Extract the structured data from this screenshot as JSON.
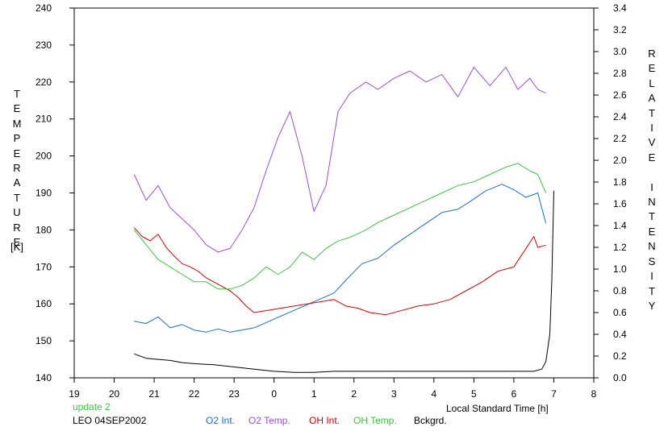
{
  "chart_data": {
    "type": "line",
    "left_axis_label": "TEMPERATURE",
    "left_axis_unit": "[K]",
    "right_axis_label": "RELATIVE INTENSITY",
    "xlabel": "Local Standard Time [h]",
    "status_text": "update 2",
    "site_date_text": "LEO 04SEP2002",
    "x_ticks": [
      "19",
      "20",
      "21",
      "22",
      "23",
      "0",
      "1",
      "2",
      "3",
      "4",
      "5",
      "6",
      "7",
      "8"
    ],
    "y_left_ticks": [
      "140",
      "150",
      "160",
      "170",
      "180",
      "190",
      "200",
      "210",
      "220",
      "230",
      "240"
    ],
    "y_right_ticks": [
      "0.0",
      "0.2",
      "0.4",
      "0.6",
      "0.8",
      "1.0",
      "1.2",
      "1.4",
      "1.6",
      "1.8",
      "2.0",
      "2.2",
      "2.4",
      "2.6",
      "2.8",
      "3.0",
      "3.2",
      "3.4"
    ],
    "xlim": [
      19,
      32
    ],
    "ylim_left": [
      140,
      240
    ],
    "ylim_right": [
      0.0,
      3.4
    ],
    "series": [
      {
        "name": "O2 Int.",
        "color": "#1a6fd0",
        "axis": "right",
        "x": [
          20.5,
          20.8,
          21.1,
          21.4,
          21.7,
          22.0,
          22.3,
          22.6,
          22.9,
          23.2,
          23.5,
          25.5,
          25.8,
          26.2,
          26.6,
          27.0,
          27.4,
          27.8,
          28.2,
          28.6,
          28.9,
          29.3,
          29.7,
          30.0,
          30.3,
          30.6,
          30.8
        ],
        "y": [
          0.52,
          0.5,
          0.56,
          0.46,
          0.49,
          0.44,
          0.42,
          0.45,
          0.42,
          0.44,
          0.46,
          0.78,
          0.9,
          1.05,
          1.1,
          1.22,
          1.32,
          1.42,
          1.52,
          1.55,
          1.62,
          1.72,
          1.78,
          1.73,
          1.66,
          1.7,
          1.42
        ]
      },
      {
        "name": "O2 Temp.",
        "color": "#9b4fd0",
        "axis": "left",
        "x": [
          20.5,
          20.8,
          21.1,
          21.4,
          21.7,
          22.0,
          22.3,
          22.6,
          22.9,
          23.2,
          23.5,
          23.8,
          24.1,
          24.4,
          24.7,
          25.0,
          25.3,
          25.6,
          25.9,
          26.3,
          26.6,
          27.0,
          27.4,
          27.8,
          28.2,
          28.6,
          29.0,
          29.4,
          29.8,
          30.1,
          30.4,
          30.6,
          30.8
        ],
        "y": [
          195,
          188,
          192,
          186,
          183,
          180,
          176,
          174,
          175,
          180,
          186,
          196,
          205,
          212,
          200,
          185,
          192,
          212,
          217,
          220,
          218,
          221,
          223,
          220,
          222,
          216,
          224,
          219,
          224,
          218,
          221,
          218,
          217
        ]
      },
      {
        "name": "OH Int.",
        "color": "#d40000",
        "axis": "right",
        "x": [
          20.5,
          20.7,
          20.9,
          21.1,
          21.3,
          21.5,
          21.7,
          21.9,
          22.1,
          22.3,
          22.5,
          22.7,
          22.9,
          23.1,
          23.3,
          23.5,
          25.5,
          25.8,
          26.1,
          26.4,
          26.8,
          27.2,
          27.6,
          28.0,
          28.4,
          28.8,
          29.2,
          29.6,
          30.0,
          30.5,
          30.6,
          30.8
        ],
        "y": [
          1.38,
          1.3,
          1.26,
          1.32,
          1.2,
          1.12,
          1.05,
          1.02,
          0.98,
          0.92,
          0.88,
          0.84,
          0.8,
          0.74,
          0.66,
          0.6,
          0.72,
          0.66,
          0.64,
          0.6,
          0.58,
          0.62,
          0.66,
          0.68,
          0.72,
          0.8,
          0.88,
          0.98,
          1.02,
          1.3,
          1.2,
          1.22
        ]
      },
      {
        "name": "OH Temp.",
        "color": "#3ec43e",
        "axis": "left",
        "x": [
          20.5,
          20.8,
          21.1,
          21.4,
          21.7,
          22.0,
          22.3,
          22.6,
          22.9,
          23.2,
          23.5,
          23.8,
          24.1,
          24.4,
          24.7,
          25.0,
          25.3,
          25.6,
          25.9,
          26.3,
          26.6,
          27.0,
          27.4,
          27.8,
          28.2,
          28.6,
          29.0,
          29.4,
          29.8,
          30.1,
          30.4,
          30.6,
          30.8
        ],
        "y": [
          180,
          176,
          172,
          170,
          168,
          166,
          166,
          164,
          164,
          165,
          167,
          170,
          168,
          170,
          174,
          172,
          175,
          177,
          178,
          180,
          182,
          184,
          186,
          188,
          190,
          192,
          193,
          195,
          197,
          198,
          196,
          195,
          190
        ]
      },
      {
        "name": "Bckgrd.",
        "color": "#000000",
        "axis": "right",
        "x": [
          20.5,
          20.8,
          21.1,
          21.4,
          21.7,
          22.0,
          22.5,
          23.0,
          23.5,
          24.0,
          24.5,
          25.0,
          25.5,
          26.0,
          26.5,
          27.0,
          27.5,
          28.0,
          28.5,
          29.0,
          29.5,
          30.0,
          30.5,
          30.7,
          30.8,
          30.9,
          30.95,
          31.0
        ],
        "y": [
          0.22,
          0.18,
          0.17,
          0.16,
          0.14,
          0.13,
          0.12,
          0.1,
          0.08,
          0.06,
          0.05,
          0.05,
          0.06,
          0.06,
          0.06,
          0.06,
          0.06,
          0.06,
          0.06,
          0.06,
          0.06,
          0.06,
          0.06,
          0.08,
          0.15,
          0.4,
          0.9,
          1.72
        ]
      }
    ]
  }
}
